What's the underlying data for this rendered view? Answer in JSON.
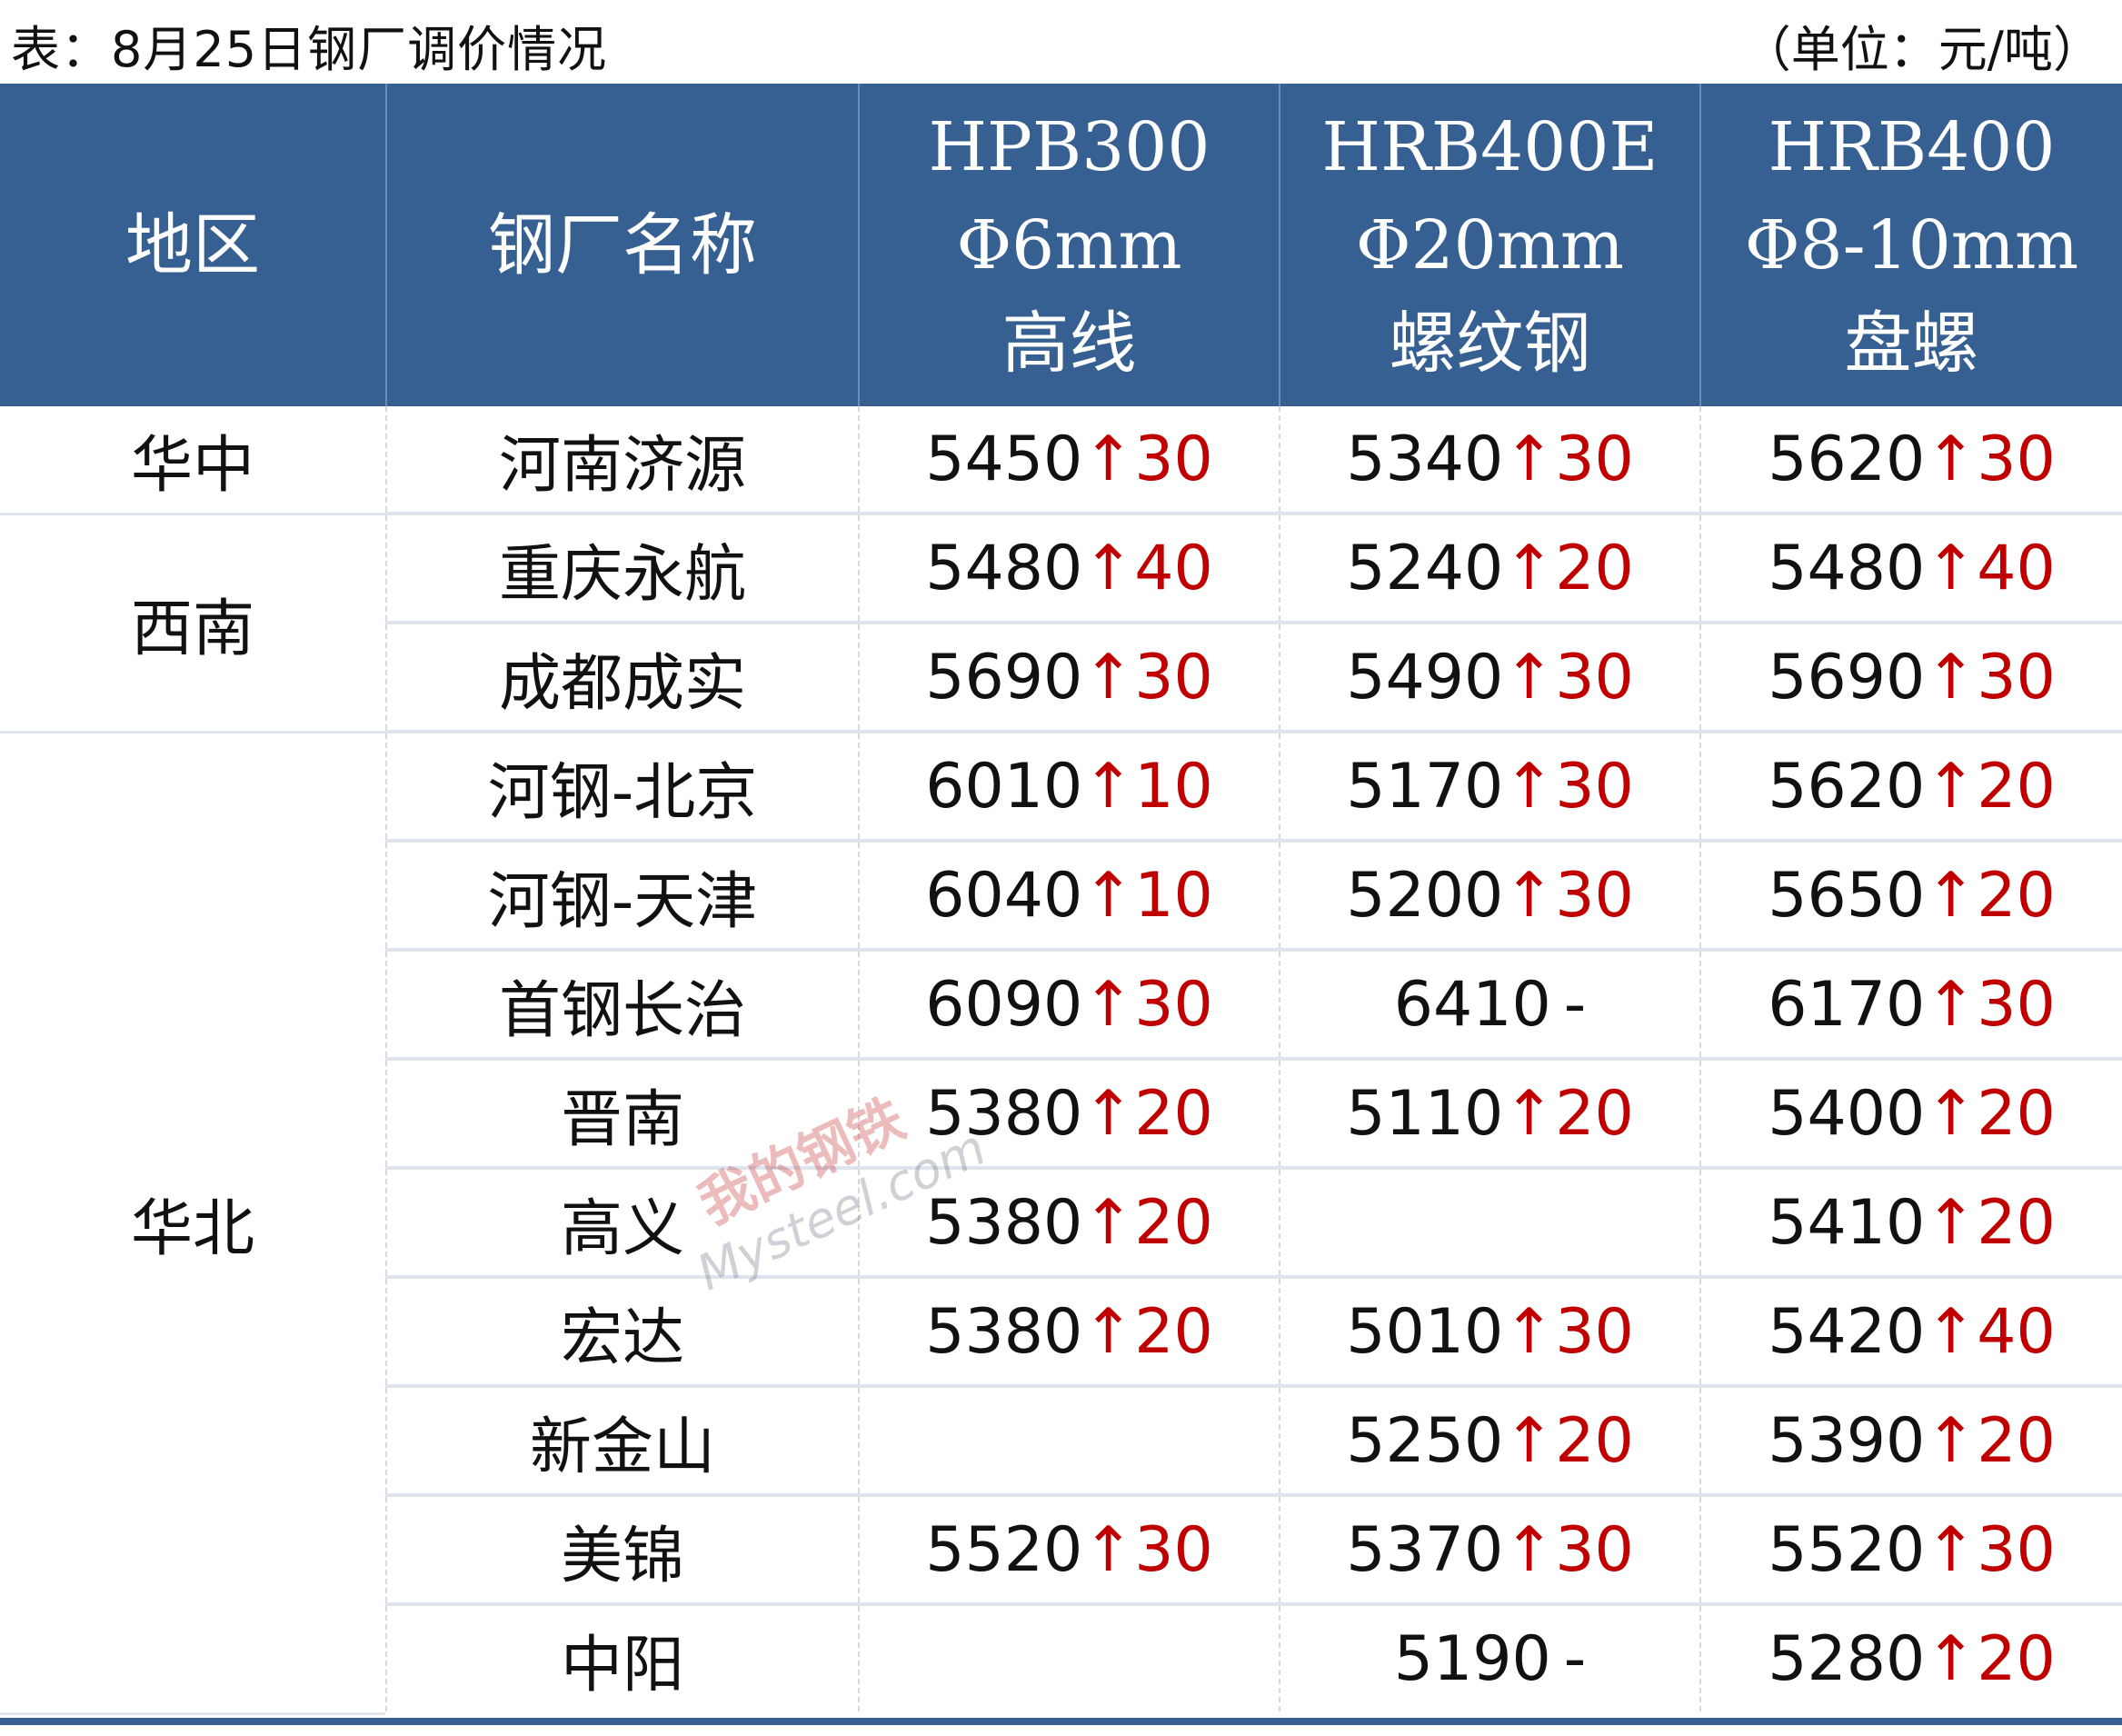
{
  "title": "表：8月25日钢厂调价情况",
  "unit": "（单位：元/吨）",
  "watermark": {
    "logo_text": "我的钢铁",
    "site": "Mysteel.com"
  },
  "colors": {
    "header_bg": "#376092",
    "increase": "#c00000",
    "row_divider": "#dde4ee"
  },
  "headers": [
    {
      "lines": [
        "地区"
      ]
    },
    {
      "lines": [
        "钢厂名称"
      ]
    },
    {
      "lines": [
        "HPB300",
        "Φ6mm",
        "高线"
      ]
    },
    {
      "lines": [
        "HRB400E",
        "Φ20mm",
        "螺纹钢"
      ]
    },
    {
      "lines": [
        "HRB400",
        "Φ8-10mm",
        "盘螺"
      ]
    }
  ],
  "regions": [
    {
      "name": "华中",
      "rows": 1
    },
    {
      "name": "西南",
      "rows": 2
    },
    {
      "name": "华北",
      "rows": 9
    }
  ],
  "rows": [
    {
      "mill": "河南济源",
      "prices": [
        {
          "price": "5450",
          "change": "↑30"
        },
        {
          "price": "5340",
          "change": "↑30"
        },
        {
          "price": "5620",
          "change": "↑30"
        }
      ]
    },
    {
      "mill": "重庆永航",
      "prices": [
        {
          "price": "5480",
          "change": "↑40"
        },
        {
          "price": "5240",
          "change": "↑20"
        },
        {
          "price": "5480",
          "change": "↑40"
        }
      ]
    },
    {
      "mill": "成都成实",
      "prices": [
        {
          "price": "5690",
          "change": "↑30"
        },
        {
          "price": "5490",
          "change": "↑30"
        },
        {
          "price": "5690",
          "change": "↑30"
        }
      ]
    },
    {
      "mill": "河钢-北京",
      "prices": [
        {
          "price": "6010",
          "change": "↑10"
        },
        {
          "price": "5170",
          "change": "↑30"
        },
        {
          "price": "5620",
          "change": "↑20"
        }
      ]
    },
    {
      "mill": "河钢-天津",
      "prices": [
        {
          "price": "6040",
          "change": "↑10"
        },
        {
          "price": "5200",
          "change": "↑30"
        },
        {
          "price": "5650",
          "change": "↑20"
        }
      ]
    },
    {
      "mill": "首钢长治",
      "prices": [
        {
          "price": "6090",
          "change": "↑30"
        },
        {
          "price": "6410",
          "change": "-"
        },
        {
          "price": "6170",
          "change": "↑30"
        }
      ]
    },
    {
      "mill": "晋南",
      "prices": [
        {
          "price": "5380",
          "change": "↑20"
        },
        {
          "price": "5110",
          "change": "↑20"
        },
        {
          "price": "5400",
          "change": "↑20"
        }
      ]
    },
    {
      "mill": "高义",
      "prices": [
        {
          "price": "5380",
          "change": "↑20"
        },
        {
          "price": "",
          "change": ""
        },
        {
          "price": "5410",
          "change": "↑20"
        }
      ]
    },
    {
      "mill": "宏达",
      "prices": [
        {
          "price": "5380",
          "change": "↑20"
        },
        {
          "price": "5010",
          "change": "↑30"
        },
        {
          "price": "5420",
          "change": "↑40"
        }
      ]
    },
    {
      "mill": "新金山",
      "prices": [
        {
          "price": "",
          "change": ""
        },
        {
          "price": "5250",
          "change": "↑20"
        },
        {
          "price": "5390",
          "change": "↑20"
        }
      ]
    },
    {
      "mill": "美锦",
      "prices": [
        {
          "price": "5520",
          "change": "↑30"
        },
        {
          "price": "5370",
          "change": "↑30"
        },
        {
          "price": "5520",
          "change": "↑30"
        }
      ]
    },
    {
      "mill": "中阳",
      "prices": [
        {
          "price": "",
          "change": ""
        },
        {
          "price": "5190",
          "change": "-"
        },
        {
          "price": "5280",
          "change": "↑20"
        }
      ]
    }
  ]
}
